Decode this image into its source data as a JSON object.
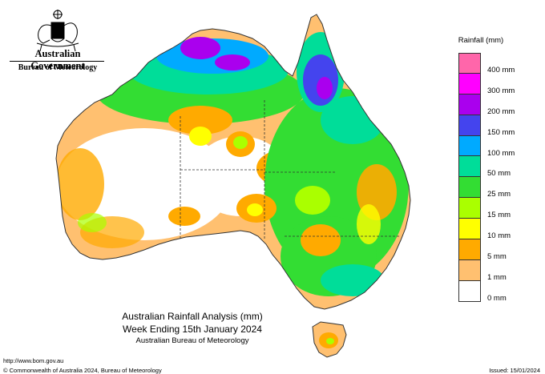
{
  "header": {
    "government": "Australian Government",
    "agency": "Bureau of Meteorology"
  },
  "legend": {
    "title": "Rainfall (mm)",
    "levels": [
      {
        "label": "400 mm",
        "color": "#ff66aa"
      },
      {
        "label": "300 mm",
        "color": "#ff00ff"
      },
      {
        "label": "200 mm",
        "color": "#aa00ee"
      },
      {
        "label": "150 mm",
        "color": "#4444ee"
      },
      {
        "label": "100 mm",
        "color": "#00aaff"
      },
      {
        "label": "50 mm",
        "color": "#00dd99"
      },
      {
        "label": "25 mm",
        "color": "#33dd33"
      },
      {
        "label": "15 mm",
        "color": "#aaff00"
      },
      {
        "label": "10 mm",
        "color": "#ffff00"
      },
      {
        "label": "5 mm",
        "color": "#ffaa00"
      },
      {
        "label": "1 mm",
        "color": "#ffc070"
      },
      {
        "label": "0 mm",
        "color": "#ffffff"
      }
    ]
  },
  "map": {
    "title_line1": "Australian Rainfall Analysis (mm)",
    "title_line2": "Week Ending 15th January 2024",
    "title_line3": "Australian Bureau of Meteorology"
  },
  "footer": {
    "url": "http://www.bom.gov.au",
    "copyright": "© Commonwealth of Australia 2024, Bureau of Meteorology",
    "issued": "Issued: 15/01/2024"
  }
}
